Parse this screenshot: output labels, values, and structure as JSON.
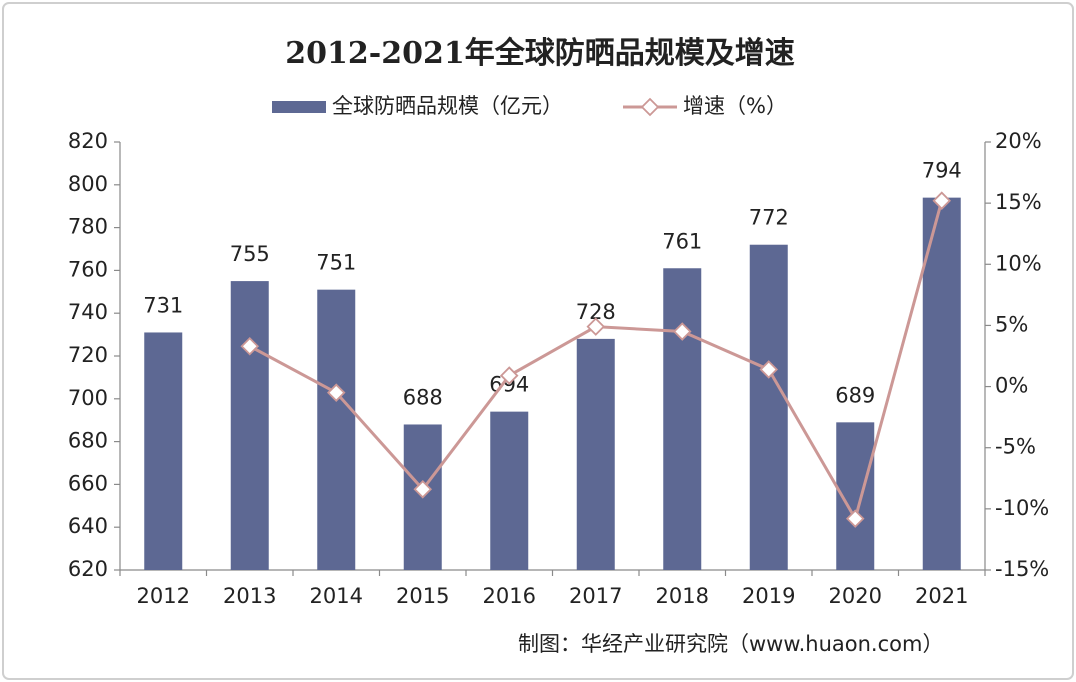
{
  "chart_data": {
    "type": "bar",
    "title": "2012-2021年全球防晒品规模及增速",
    "categories": [
      "2012",
      "2013",
      "2014",
      "2015",
      "2016",
      "2017",
      "2018",
      "2019",
      "2020",
      "2021"
    ],
    "series": [
      {
        "name": "全球防晒品规模（亿元）",
        "type": "bar",
        "color": "#5d6893",
        "values": [
          731,
          755,
          751,
          688,
          694,
          728,
          761,
          772,
          689,
          794
        ]
      },
      {
        "name": "增速（%）",
        "type": "line",
        "axis": "y2",
        "color": "#cc9896",
        "values": [
          null,
          3.3,
          -0.5,
          -8.4,
          0.9,
          4.9,
          4.5,
          1.4,
          -10.8,
          15.2
        ]
      }
    ],
    "ylim": [
      620,
      820
    ],
    "yticks": [
      620,
      640,
      660,
      680,
      700,
      720,
      740,
      760,
      780,
      800,
      820
    ],
    "y2lim": [
      -15,
      20
    ],
    "y2ticks": [
      {
        "value": -15,
        "label": "-15%"
      },
      {
        "value": -10,
        "label": "-10%"
      },
      {
        "value": -5,
        "label": "-5%"
      },
      {
        "value": 0,
        "label": "0%"
      },
      {
        "value": 5,
        "label": "5%"
      },
      {
        "value": 10,
        "label": "10%"
      },
      {
        "value": 15,
        "label": "15%"
      },
      {
        "value": 20,
        "label": "20%"
      }
    ],
    "grid": false,
    "legend": "top",
    "source": "制图：华经产业研究院（www.huaon.com）"
  }
}
